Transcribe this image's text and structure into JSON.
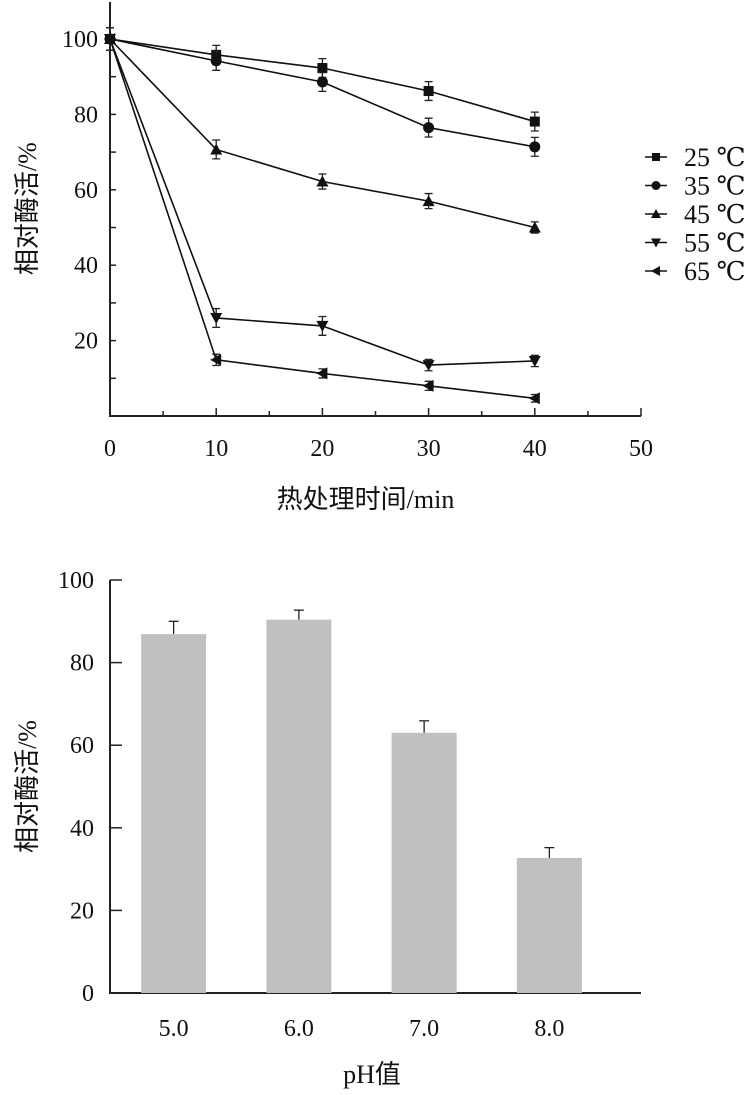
{
  "chart_data": [
    {
      "type": "line",
      "xlabel": "热处理时间/min",
      "ylabel": "相对酶活/%",
      "xlim": [
        0,
        50
      ],
      "ylim": [
        0,
        110
      ],
      "xticks": [
        "0",
        "10",
        "20",
        "30",
        "40",
        "50"
      ],
      "yticks": [
        "20",
        "40",
        "60",
        "80",
        "100"
      ],
      "x": [
        0,
        10,
        20,
        30,
        40
      ],
      "legend_position": "right",
      "series": [
        {
          "name": "25 ℃",
          "marker": "square",
          "values": [
            100,
            95.8,
            92.3,
            86.2,
            78.1
          ],
          "errors": [
            3,
            2.5,
            2.5,
            2.5,
            2.5
          ]
        },
        {
          "name": "35 ℃",
          "marker": "circle",
          "values": [
            100,
            94.2,
            88.6,
            76.5,
            71.4
          ],
          "errors": [
            3,
            2.5,
            2.5,
            2.5,
            2.5
          ]
        },
        {
          "name": "45 ℃",
          "marker": "triangle-up",
          "values": [
            100,
            70.7,
            62.2,
            57,
            50
          ],
          "errors": [
            3,
            2.5,
            2,
            2,
            1.5
          ]
        },
        {
          "name": "55 ℃",
          "marker": "triangle-down",
          "values": [
            100,
            26,
            23.9,
            13.5,
            14.6
          ],
          "errors": [
            3,
            2.5,
            2.5,
            1.5,
            1.5
          ]
        },
        {
          "name": "65 ℃",
          "marker": "triangle-left",
          "values": [
            100,
            14.9,
            11.3,
            8,
            4.7
          ],
          "errors": [
            3,
            1.5,
            1.2,
            1.2,
            1
          ]
        }
      ]
    },
    {
      "type": "bar",
      "xlabel": "pH值",
      "ylabel": "相对酶活/%",
      "ylim": [
        0,
        100
      ],
      "yticks": [
        "0",
        "20",
        "40",
        "60",
        "80",
        "100"
      ],
      "categories": [
        "5.0",
        "6.0",
        "7.0",
        "8.0"
      ],
      "values": [
        86.9,
        90.4,
        63,
        32.7
      ],
      "errors": [
        3.1,
        2.3,
        2.9,
        2.5
      ],
      "bar_color": "#c0c0c0"
    }
  ]
}
